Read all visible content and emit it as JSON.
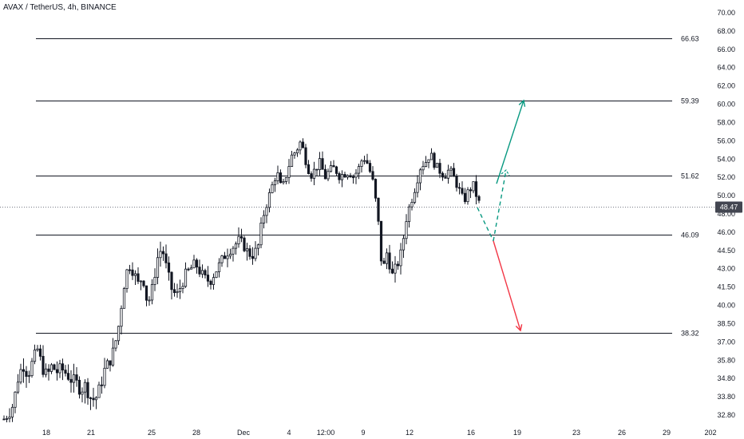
{
  "header": {
    "title": "AVAX / TetherUS, 4h, BINANCE"
  },
  "colors": {
    "candle": "#131722",
    "level_line": "#131722",
    "arrow_up": "#089981",
    "arrow_down": "#f23645",
    "dashed": "#089981",
    "current_tag": "#434651"
  },
  "chart_data": {
    "type": "candlestick",
    "title": "AVAX / TetherUS, 4h, BINANCE",
    "x_ticks": [
      "18",
      "21",
      "25",
      "28",
      "Dec",
      "4",
      "12:00",
      "9",
      "12",
      "16",
      "19",
      "23",
      "26",
      "29",
      "202"
    ],
    "y_ticks": [
      "70.00",
      "68.00",
      "66.00",
      "64.00",
      "62.00",
      "60.00",
      "58.00",
      "56.00",
      "54.00",
      "52.00",
      "50.00",
      "48.00",
      "46.00",
      "44.50",
      "43.00",
      "41.50",
      "40.00",
      "38.50",
      "37.00",
      "35.80",
      "34.80",
      "33.80",
      "32.80"
    ],
    "current_price": "48.47",
    "levels": [
      {
        "label": "66.63",
        "value": 66.63
      },
      {
        "label": "59.39",
        "value": 59.39
      },
      {
        "label": "51.62",
        "value": 51.62
      },
      {
        "label": "46.09",
        "value": 46.09
      },
      {
        "label": "38.32",
        "value": 38.32
      }
    ],
    "price_path": [
      [
        0,
        32.3
      ],
      [
        6,
        32.8
      ],
      [
        12,
        33.6
      ],
      [
        18,
        35.4
      ],
      [
        24,
        36.2
      ],
      [
        30,
        35.5
      ],
      [
        36,
        36.4
      ],
      [
        42,
        37.2
      ],
      [
        48,
        36.0
      ],
      [
        54,
        35.4
      ],
      [
        60,
        36.1
      ],
      [
        66,
        35.7
      ],
      [
        72,
        35.9
      ],
      [
        78,
        35.6
      ],
      [
        84,
        35.2
      ],
      [
        90,
        35.0
      ],
      [
        96,
        34.5
      ],
      [
        102,
        34.8
      ],
      [
        108,
        34.0
      ],
      [
        114,
        33.8
      ],
      [
        120,
        34.6
      ],
      [
        126,
        35.8
      ],
      [
        132,
        36.4
      ],
      [
        138,
        37.2
      ],
      [
        144,
        39.0
      ],
      [
        150,
        42.0
      ],
      [
        156,
        43.8
      ],
      [
        162,
        43.2
      ],
      [
        168,
        42.2
      ],
      [
        174,
        42.8
      ],
      [
        180,
        40.5
      ],
      [
        186,
        41.9
      ],
      [
        192,
        44.2
      ],
      [
        198,
        45.1
      ],
      [
        204,
        43.3
      ],
      [
        210,
        41.8
      ],
      [
        216,
        41.2
      ],
      [
        222,
        42.1
      ],
      [
        228,
        43.0
      ],
      [
        234,
        43.4
      ],
      [
        240,
        43.8
      ],
      [
        246,
        43.1
      ],
      [
        252,
        42.6
      ],
      [
        258,
        42.4
      ],
      [
        264,
        43.1
      ],
      [
        270,
        43.7
      ],
      [
        276,
        44.4
      ],
      [
        282,
        44.9
      ],
      [
        288,
        45.2
      ],
      [
        294,
        45.6
      ],
      [
        300,
        45.3
      ],
      [
        306,
        44.6
      ],
      [
        312,
        44.5
      ],
      [
        318,
        45.0
      ],
      [
        324,
        47.5
      ],
      [
        330,
        49.0
      ],
      [
        336,
        50.6
      ],
      [
        342,
        52.0
      ],
      [
        348,
        50.1
      ],
      [
        354,
        51.8
      ],
      [
        360,
        53.6
      ],
      [
        366,
        54.2
      ],
      [
        372,
        55.2
      ],
      [
        378,
        53.2
      ],
      [
        384,
        51.6
      ],
      [
        390,
        52.3
      ],
      [
        396,
        53.0
      ],
      [
        402,
        51.4
      ],
      [
        408,
        52.2
      ],
      [
        414,
        52.4
      ],
      [
        420,
        51.6
      ],
      [
        426,
        51.8
      ],
      [
        432,
        52.0
      ],
      [
        438,
        51.5
      ],
      [
        444,
        52.3
      ],
      [
        450,
        53.6
      ],
      [
        456,
        52.8
      ],
      [
        462,
        51.0
      ],
      [
        468,
        47.8
      ],
      [
        474,
        43.0
      ],
      [
        480,
        44.8
      ],
      [
        486,
        42.8
      ],
      [
        492,
        43.6
      ],
      [
        498,
        44.7
      ],
      [
        504,
        47.5
      ],
      [
        510,
        49.0
      ],
      [
        516,
        50.7
      ],
      [
        522,
        52.6
      ],
      [
        528,
        53.0
      ],
      [
        534,
        53.9
      ],
      [
        540,
        52.7
      ],
      [
        546,
        52.1
      ],
      [
        552,
        51.6
      ],
      [
        558,
        52.3
      ],
      [
        564,
        51.3
      ],
      [
        570,
        50.2
      ],
      [
        576,
        49.0
      ],
      [
        582,
        50.1
      ],
      [
        588,
        50.6
      ],
      [
        594,
        49.0
      ],
      [
        598,
        48.47
      ]
    ],
    "projection": {
      "down_leg": [
        [
          598,
          48.4
        ],
        [
          618,
          45.6
        ]
      ],
      "up_dashed": [
        [
          618,
          45.6
        ],
        [
          634,
          52.2
        ]
      ],
      "up_arrow": [
        [
          622,
          50.8
        ],
        [
          656,
          59.4
        ]
      ],
      "down_arrow": [
        [
          618,
          45.6
        ],
        [
          652,
          38.5
        ]
      ]
    }
  }
}
